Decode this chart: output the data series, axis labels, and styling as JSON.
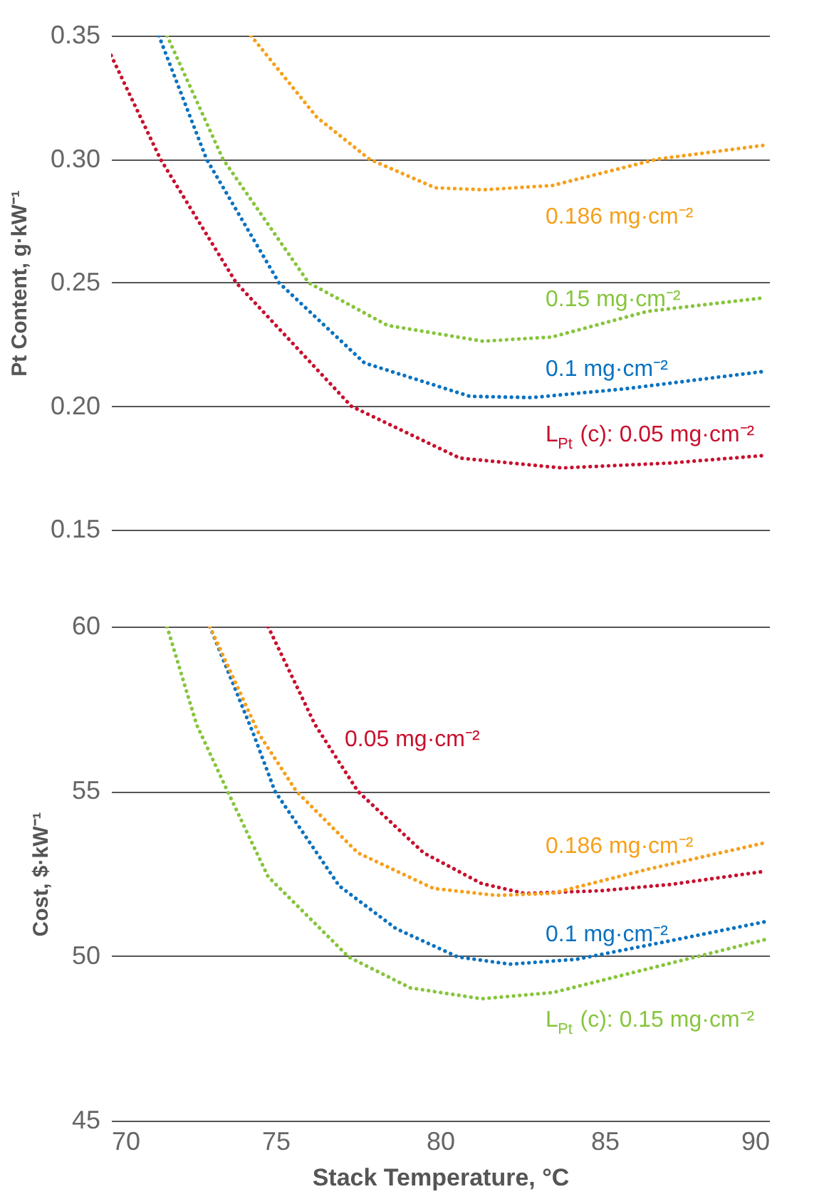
{
  "chart_data": [
    {
      "type": "line",
      "ylabel": "Pt Content, g·kW⁻¹",
      "xlim": [
        70,
        90
      ],
      "ylim": [
        0.15,
        0.35
      ],
      "yticks": [
        {
          "value": 0.15,
          "label": "0.15"
        },
        {
          "value": 0.2,
          "label": "0.20"
        },
        {
          "value": 0.25,
          "label": "0.25"
        },
        {
          "value": 0.3,
          "label": "0.30"
        },
        {
          "value": 0.35,
          "label": "0.35"
        }
      ],
      "grid": "y",
      "tick_labels": "y",
      "line_style": "dotted",
      "marker": "none",
      "series": [
        {
          "name": "L$_{Pt}$ (c): 0.05 mg·cm⁻²",
          "color": "#c8102e",
          "x": [
            70.0,
            71.5,
            73.8,
            77.3,
            80.6,
            83.7,
            87.0,
            89.8
          ],
          "values": [
            0.342,
            0.3,
            0.25,
            0.2,
            0.179,
            0.175,
            0.177,
            0.18
          ]
        },
        {
          "name": "0.1 mg·cm⁻²",
          "color": "#0a72c0",
          "x": [
            71.45,
            72.9,
            75.1,
            77.7,
            80.9,
            82.8,
            85.6,
            89.8
          ],
          "values": [
            0.35,
            0.3,
            0.25,
            0.2175,
            0.204,
            0.2035,
            0.207,
            0.214
          ]
        },
        {
          "name": "0.15 mg·cm⁻²",
          "color": "#86c53c",
          "x": [
            71.7,
            73.4,
            76.0,
            78.4,
            81.3,
            83.4,
            86.3,
            89.8
          ],
          "values": [
            0.35,
            0.3,
            0.25,
            0.2327,
            0.2263,
            0.228,
            0.2384,
            0.2438
          ]
        },
        {
          "name": "0.186 mg·cm⁻²",
          "color": "#f6a01a",
          "x": [
            74.25,
            76.25,
            77.85,
            79.85,
            81.3,
            83.4,
            86.6,
            89.9
          ],
          "values": [
            0.35,
            0.317,
            0.3,
            0.2884,
            0.2876,
            0.2893,
            0.3,
            0.3057
          ]
        }
      ]
    },
    {
      "type": "line",
      "xlabel": "Stack Temperature, °C",
      "ylabel": "Cost, $·kW⁻¹",
      "xlim": [
        70,
        90
      ],
      "xticks": [
        70,
        75,
        80,
        85,
        90
      ],
      "ylim": [
        45,
        60
      ],
      "yticks": [
        45,
        50,
        55,
        60
      ],
      "grid": "y",
      "line_style": "dotted",
      "marker": "none",
      "series": [
        {
          "name": "0.05 mg·cm⁻²",
          "color": "#c8102e",
          "x": [
            74.77,
            76.2,
            77.5,
            79.5,
            81.26,
            82.56,
            84.87,
            87.0,
            89.8
          ],
          "values": [
            60,
            57.02,
            55.0,
            53.13,
            52.2,
            51.9,
            51.98,
            52.17,
            52.56
          ]
        },
        {
          "name": "0.1 mg·cm⁻²",
          "color": "#0a72c0",
          "x": [
            73.0,
            74.33,
            74.98,
            76.93,
            78.66,
            80.54,
            82.13,
            84.15,
            87.04,
            89.93
          ],
          "values": [
            60,
            56.73,
            55.0,
            52.13,
            50.83,
            49.97,
            49.75,
            49.9,
            50.47,
            51.05
          ]
        },
        {
          "name": "L$_{Pt}$ (c): 0.15 mg·cm⁻²",
          "color": "#86c53c",
          "x": [
            71.7,
            72.6,
            73.54,
            74.77,
            77.22,
            79.1,
            81.26,
            83.43,
            87.76,
            89.93
          ],
          "values": [
            60,
            57.02,
            55.0,
            52.41,
            49.97,
            49.03,
            48.7,
            48.89,
            49.97,
            50.51
          ]
        },
        {
          "name": "0.186 mg·cm⁻²",
          "color": "#f6a01a",
          "x": [
            73.0,
            74.5,
            75.63,
            77.5,
            79.8,
            81.7,
            83.4,
            86.3,
            89.8
          ],
          "values": [
            60,
            56.73,
            55.0,
            53.13,
            52.05,
            51.84,
            51.9,
            52.63,
            53.42
          ]
        }
      ]
    }
  ]
}
